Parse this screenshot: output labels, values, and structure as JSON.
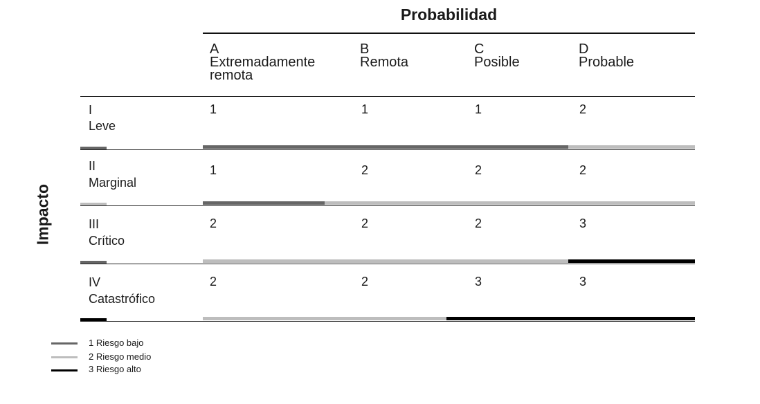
{
  "title": "Probabilidad",
  "axis_label": "Impacto",
  "columns": [
    {
      "letter": "A",
      "name": "Extremadamente",
      "name2": "remota"
    },
    {
      "letter": "B",
      "name": "Remota",
      "name2": ""
    },
    {
      "letter": "C",
      "name": "Posible",
      "name2": ""
    },
    {
      "letter": "D",
      "name": "Probable",
      "name2": ""
    }
  ],
  "rows": [
    {
      "code": "I",
      "name": "Leve",
      "values": [
        "1",
        "1",
        "1",
        "2"
      ]
    },
    {
      "code": "II",
      "name": "Marginal",
      "values": [
        "1",
        "2",
        "2",
        "2"
      ]
    },
    {
      "code": "III",
      "name": "Crítico",
      "values": [
        "2",
        "2",
        "2",
        "3"
      ]
    },
    {
      "code": "IV",
      "name": "Catastrófico",
      "values": [
        "2",
        "2",
        "3",
        "3"
      ]
    }
  ],
  "legend": [
    {
      "label": "1 Riesgo bajo",
      "color": "#666666"
    },
    {
      "label": "2 Riesgo medio",
      "color": "#bdbdbd"
    },
    {
      "label": "3 Riesgo alto",
      "color": "#000000"
    }
  ]
}
